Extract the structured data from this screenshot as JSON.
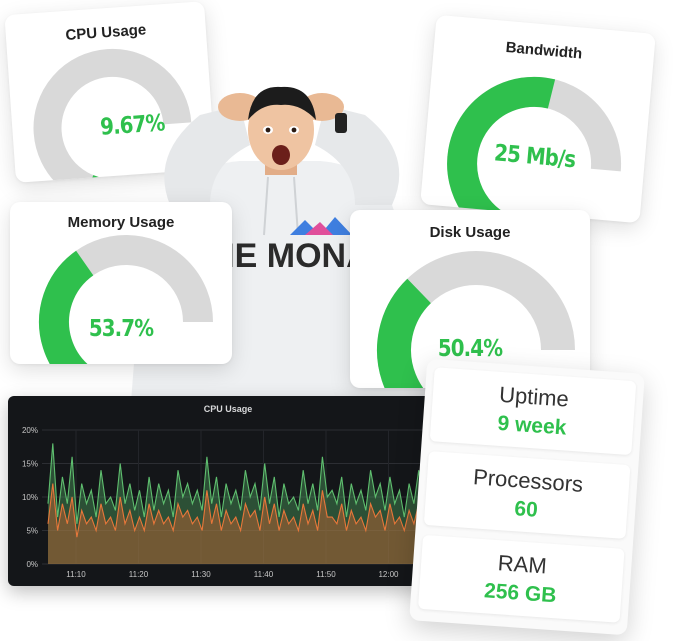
{
  "colors": {
    "accent_green": "#2fc04d",
    "gauge_track": "#d9d9d9",
    "panel_bg": "#141619",
    "series_green": "#2e6b3c",
    "series_orange": "#e8773a"
  },
  "gauges": {
    "cpu": {
      "title": "CPU Usage",
      "value": "9.67%",
      "percent": 9.67
    },
    "bandwidth": {
      "title": "Bandwidth",
      "value": "25 Mb/s",
      "percent": 70
    },
    "memory": {
      "title": "Memory Usage",
      "value": "53.7%",
      "percent": 53.7
    },
    "disk": {
      "title": "Disk Usage",
      "value": "50.4%",
      "percent": 50.4
    }
  },
  "person": {
    "hoodie_text": "THE MONA"
  },
  "stats": {
    "uptime": {
      "label": "Uptime",
      "value": "9 week"
    },
    "processors": {
      "label": "Processors",
      "value": "60"
    },
    "ram": {
      "label": "RAM",
      "value": "256 GB"
    }
  },
  "chart_data": {
    "type": "area",
    "title": "CPU Usage",
    "xlabel": "",
    "ylabel": "",
    "x_ticks": [
      "11:10",
      "11:20",
      "11:30",
      "11:40",
      "11:50",
      "12:00"
    ],
    "y_ticks": [
      "0%",
      "5%",
      "10%",
      "15%",
      "20%"
    ],
    "ylim": [
      0,
      20
    ],
    "grid": true,
    "series": [
      {
        "values": [
          9,
          18,
          7,
          13,
          9,
          16,
          6,
          12,
          9,
          11,
          7,
          14,
          9,
          10,
          8,
          15,
          9,
          12,
          8,
          11,
          7,
          13,
          8,
          12,
          9,
          11,
          7,
          14,
          10,
          12,
          9,
          11,
          8,
          16,
          9,
          13,
          7,
          12,
          9,
          11,
          8,
          14,
          10,
          12,
          8,
          15,
          9,
          13,
          7,
          12,
          9,
          10,
          8,
          14,
          9,
          12,
          8,
          16,
          10,
          11,
          9,
          13,
          7,
          12,
          9,
          11,
          8,
          14,
          10,
          12,
          8,
          13,
          9,
          11,
          7,
          12,
          9,
          14,
          8,
          13,
          10,
          12
        ]
      },
      {
        "values": [
          6,
          12,
          5,
          9,
          6,
          10,
          4,
          8,
          6,
          7,
          5,
          9,
          6,
          7,
          5,
          10,
          6,
          8,
          5,
          7,
          5,
          9,
          6,
          8,
          6,
          7,
          5,
          9,
          7,
          8,
          6,
          7,
          5,
          11,
          6,
          9,
          5,
          8,
          6,
          7,
          5,
          9,
          7,
          8,
          5,
          10,
          6,
          9,
          5,
          8,
          6,
          7,
          5,
          9,
          6,
          8,
          5,
          11,
          7,
          7,
          6,
          9,
          5,
          8,
          6,
          7,
          5,
          9,
          7,
          8,
          5,
          9,
          6,
          7,
          5,
          8,
          6,
          9,
          5,
          9,
          7,
          8
        ]
      }
    ]
  }
}
